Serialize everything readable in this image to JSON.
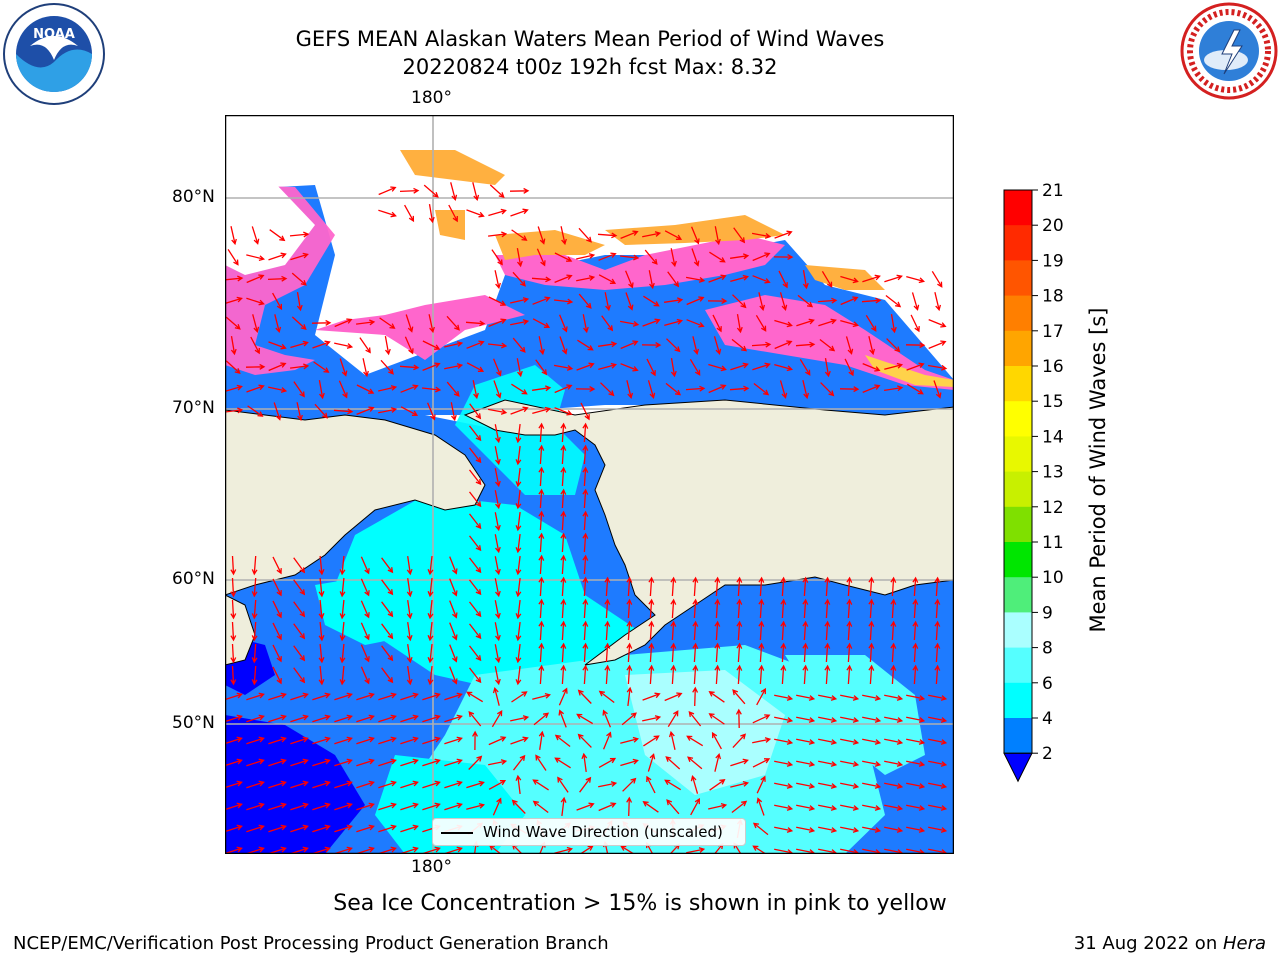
{
  "header": {
    "title_line1": "GEFS MEAN Alaskan Waters Mean Period of Wind Waves",
    "title_line2": "20220824 t00z 192h fcst   Max: 8.32"
  },
  "logos": {
    "left": "NOAA",
    "right": "NATIONAL WEATHER SERVICE"
  },
  "map": {
    "lon_label": "180°",
    "lat_labels": [
      "80°N",
      "70°N",
      "60°N",
      "50°N"
    ],
    "land_color": "#efeedc",
    "legend_label": "Wind Wave Direction (unscaled)"
  },
  "colorbar": {
    "label": "Mean Period of Wind Waves [s]",
    "ticks": [
      "21",
      "20",
      "19",
      "18",
      "17",
      "16",
      "15",
      "14",
      "13",
      "12",
      "11",
      "10",
      "9",
      "8",
      "6",
      "4",
      "2"
    ],
    "colors": [
      "#ff0000",
      "#ff2a00",
      "#ff5500",
      "#ff7f00",
      "#ffa500",
      "#ffd700",
      "#ffff00",
      "#e8f800",
      "#c8f000",
      "#7fe000",
      "#00e600",
      "#4fee7a",
      "#aaffff",
      "#55ffff",
      "#00ffff",
      "#0080ff"
    ],
    "under_color": "#0000ff"
  },
  "note": "Sea Ice Concentration > 15% is shown in pink to yellow",
  "footer": {
    "left": "NCEP/EMC/Verification Post Processing Product Generation Branch",
    "right_date": "31 Aug 2022 on ",
    "right_host": "Hera"
  }
}
